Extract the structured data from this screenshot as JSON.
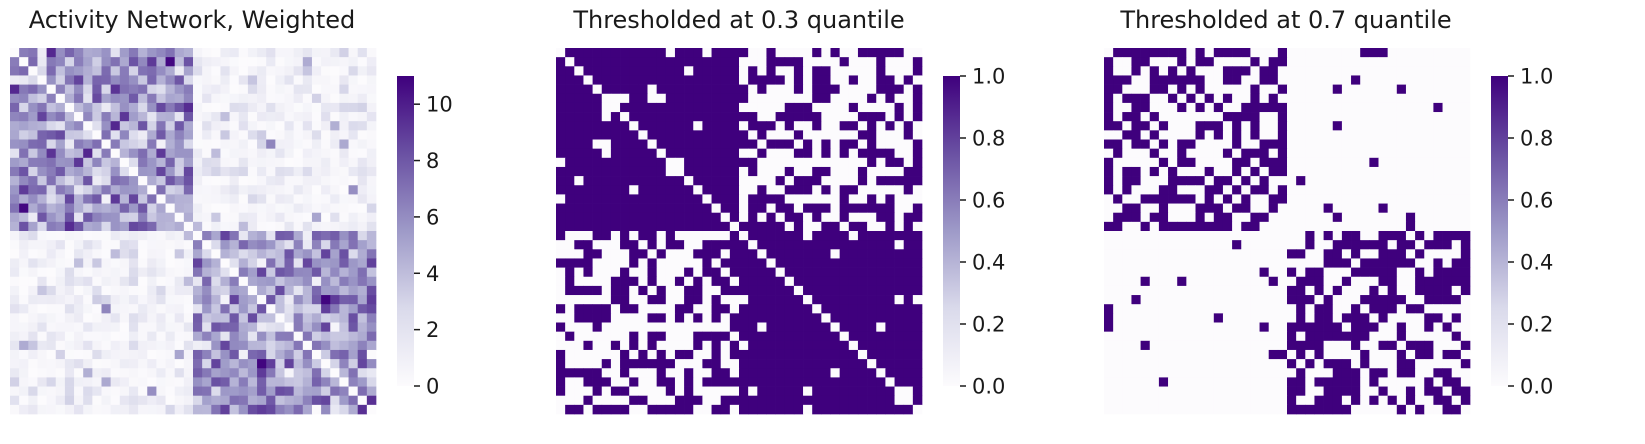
{
  "chart_data": [
    {
      "type": "heatmap",
      "title": "Activity Network, Weighted",
      "n_nodes": 40,
      "community_blocks": [
        20,
        20
      ],
      "colormap": "Purples",
      "colorbar": {
        "range": [
          0,
          11
        ],
        "ticks": [
          0,
          2,
          4,
          6,
          8,
          10
        ],
        "labels": [
          "0",
          "2",
          "4",
          "6",
          "8",
          "10"
        ]
      },
      "within_block_mean_weight": 5.5,
      "between_block_mean_weight": 1.0,
      "diagonal_value": 0,
      "xlabel": "",
      "ylabel": "",
      "grid": false,
      "show_axis_ticks": false
    },
    {
      "type": "heatmap",
      "title": "Thresholded at 0.3 quantile",
      "n_nodes": 40,
      "community_blocks": [
        20,
        20
      ],
      "colormap": "Purples",
      "threshold_quantile": 0.3,
      "colorbar": {
        "range": [
          0,
          1
        ],
        "ticks": [
          0,
          0.2,
          0.4,
          0.6,
          0.8,
          1
        ],
        "labels": [
          "0.0",
          "0.2",
          "0.4",
          "0.6",
          "0.8",
          "1.0"
        ]
      },
      "within_block_edge_fraction": 0.95,
      "between_block_edge_fraction": 0.45,
      "diagonal_value": 0,
      "xlabel": "",
      "ylabel": "",
      "grid": false,
      "show_axis_ticks": false
    },
    {
      "type": "heatmap",
      "title": "Thresholded at 0.7 quantile",
      "n_nodes": 40,
      "community_blocks": [
        20,
        20
      ],
      "colormap": "Purples",
      "threshold_quantile": 0.7,
      "colorbar": {
        "range": [
          0,
          1
        ],
        "ticks": [
          0,
          0.2,
          0.4,
          0.6,
          0.8,
          1
        ],
        "labels": [
          "0.0",
          "0.2",
          "0.4",
          "0.6",
          "0.8",
          "1.0"
        ]
      },
      "within_block_edge_fraction": 0.55,
      "between_block_edge_fraction": 0.04,
      "diagonal_value": 0,
      "xlabel": "",
      "ylabel": "",
      "grid": false,
      "show_axis_ticks": false
    }
  ],
  "colors": {
    "cmap_low": "#fcfbfd",
    "cmap_mid": "#9e9ac8",
    "cmap_high": "#3f007d",
    "text": "#1a1a1a",
    "background": "#ffffff"
  }
}
